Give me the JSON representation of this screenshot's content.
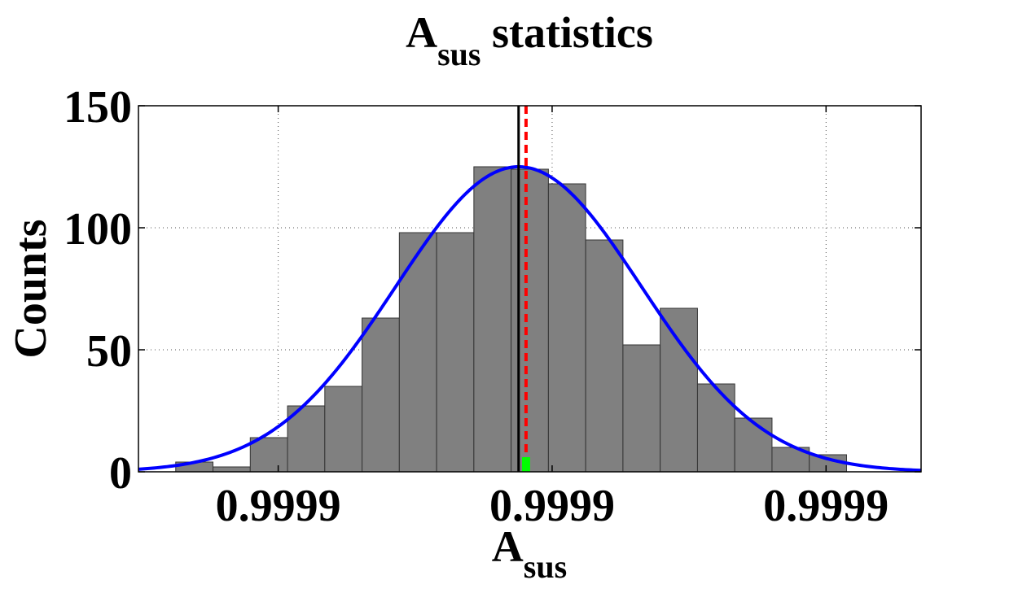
{
  "chart_data": {
    "type": "bar",
    "title": {
      "main": "A",
      "sub": "sus",
      "rest": " statistics"
    },
    "xlabel": {
      "main": "A",
      "sub": "sus"
    },
    "ylabel": "Counts",
    "ylim": [
      0,
      150
    ],
    "xlim": [
      0,
      21
    ],
    "yticks": [
      {
        "value": 0,
        "label": "0"
      },
      {
        "value": 50,
        "label": "50"
      },
      {
        "value": 100,
        "label": "100"
      },
      {
        "value": 150,
        "label": "150"
      }
    ],
    "xticks": [
      {
        "value": 3.75,
        "label": "0.9999"
      },
      {
        "value": 11.1,
        "label": "0.9999"
      },
      {
        "value": 18.45,
        "label": "0.9999"
      }
    ],
    "grid": true,
    "bins": [
      1.5,
      2.5,
      3.5,
      4.5,
      5.5,
      6.5,
      7.5,
      8.5,
      9.5,
      10.5,
      11.5,
      12.5,
      13.5,
      14.5,
      15.5,
      16.5,
      17.5,
      18.5,
      19.5
    ],
    "bin_width": 1.0,
    "values": [
      4,
      2,
      14,
      27,
      35,
      63,
      98,
      98,
      125,
      124,
      118,
      95,
      52,
      67,
      36,
      22,
      10,
      7,
      0
    ],
    "bar_color": "#808080",
    "fit_curve": {
      "type": "gaussian",
      "mean": 10.2,
      "sigma": 3.3,
      "peak": 125,
      "color": "#0000ff"
    },
    "mean_line": {
      "x": 10.2,
      "color": "#000000"
    },
    "reference_line": {
      "x": 10.4,
      "color": "#ff0000",
      "style": "dashed"
    },
    "marker": {
      "x": 10.4,
      "height": 6,
      "color": "#00ff00"
    }
  }
}
